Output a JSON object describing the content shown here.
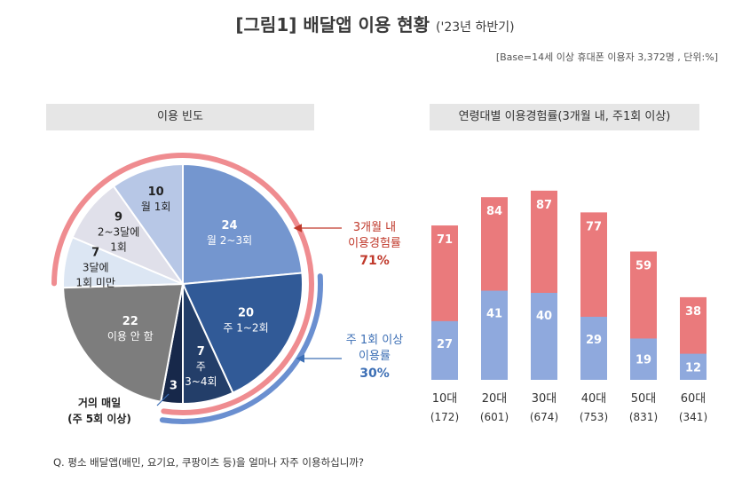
{
  "title": "[그림1] 배달앱 이용 현황",
  "title_sub": "('23년 하반기)",
  "base_note": "[Base=14세 이상 휴대폰 이용자 3,372명 , 단위:%]",
  "left_header": "이용 빈도",
  "right_header": "연령대별 이용경험률(3개월 내, 주1회 이상)",
  "footnote": "Q. 평소 배달앱(배민, 요기요, 쿠팡이츠 등)을 얼마나 자주 이용하십니까?",
  "colors": {
    "red_accent": "#c0392b",
    "blue_accent": "#3d6fb5",
    "bar_red": "#ea7a7c",
    "bar_blue": "#8fa9dd"
  },
  "callouts": {
    "three_month_l1": "3개월 내",
    "three_month_l2": "이용경험률",
    "three_month_value": "71%",
    "weekly_l1": "주 1회 이상",
    "weekly_l2": "이용률",
    "weekly_value": "30%",
    "daily_l1": "거의 매일",
    "daily_l2": "(주 5회 이상)"
  },
  "chart_data": [
    {
      "type": "pie",
      "title": "이용 빈도",
      "slices": [
        {
          "value": 24,
          "label_lines": [
            "월 2~3회"
          ],
          "color": "#7496cf"
        },
        {
          "value": 20,
          "label_lines": [
            "주 1~2회"
          ],
          "color": "#315a97"
        },
        {
          "value": 7,
          "label_lines": [
            "주",
            "3~4회"
          ],
          "color": "#233e69"
        },
        {
          "value": 3,
          "label_lines": [],
          "color": "#17284a"
        },
        {
          "value": 22,
          "label_lines": [
            "이용 안 함"
          ],
          "color": "#7d7d7d"
        },
        {
          "value": 7,
          "label_lines": [
            "3달에",
            "1회 미만"
          ],
          "color": "#dce6f3"
        },
        {
          "value": 9,
          "label_lines": [
            "2~3달에",
            "1회"
          ],
          "color": "#e0e0ea"
        },
        {
          "value": 10,
          "label_lines": [
            "월 1회"
          ],
          "color": "#b7c7e6"
        }
      ]
    },
    {
      "type": "bar",
      "title": "연령대별 이용경험률(3개월 내, 주1회 이상)",
      "stacked": false,
      "categories": [
        "10대",
        "20대",
        "30대",
        "40대",
        "50대",
        "60대"
      ],
      "category_counts": [
        "(172)",
        "(601)",
        "(674)",
        "(753)",
        "(831)",
        "(341)"
      ],
      "series": [
        {
          "name": "3개월 내 이용경험률",
          "values": [
            71,
            84,
            87,
            77,
            59,
            38
          ],
          "color": "#ea7a7c"
        },
        {
          "name": "주 1회 이상 이용률",
          "values": [
            27,
            41,
            40,
            29,
            19,
            12
          ],
          "color": "#8fa9dd"
        }
      ],
      "ylim": [
        0,
        100
      ]
    }
  ]
}
